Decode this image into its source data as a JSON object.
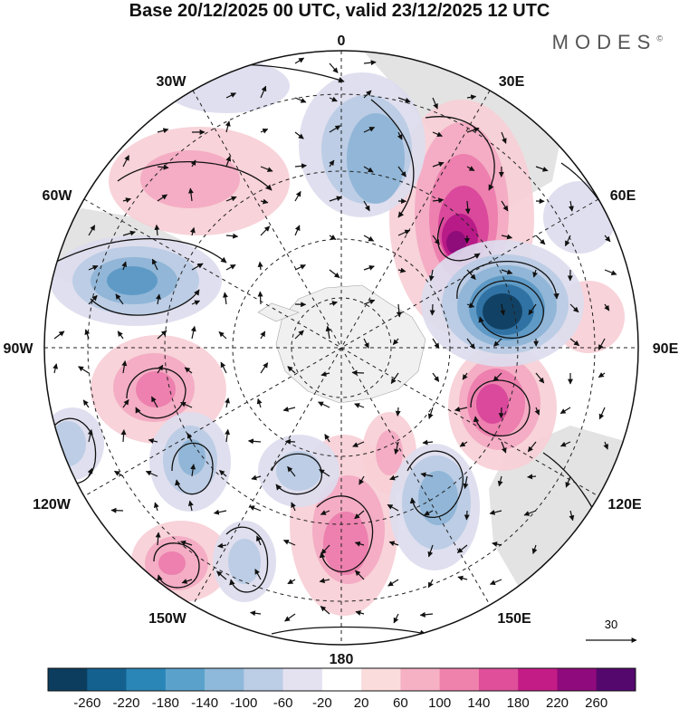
{
  "title": "Base 20/12/2025 00 UTC, valid 23/12/2025 12 UTC",
  "brand": {
    "name": "MODES",
    "mark": "©"
  },
  "longitude_labels": {
    "0": "0",
    "30E": "30E",
    "60E": "60E",
    "90E": "90E",
    "120E": "120E",
    "150E": "150E",
    "180": "180",
    "150W": "150W",
    "120W": "120W",
    "90W": "90W",
    "60W": "60W",
    "30W": "30W"
  },
  "reference_vector": {
    "label": "30"
  },
  "colorbar": {
    "ticks": [
      "-260",
      "-220",
      "-180",
      "-140",
      "-100",
      "-60",
      "-20",
      "20",
      "60",
      "100",
      "140",
      "180",
      "220",
      "260"
    ],
    "colors": [
      "#0c3d5e",
      "#14618f",
      "#2b86b8",
      "#5aa2cc",
      "#8eb9da",
      "#bccde6",
      "#e4e1f1",
      "#ffffff",
      "#fadcdc",
      "#f6b1c4",
      "#ef82ad",
      "#e04f9a",
      "#c41c86",
      "#8f0a7c",
      "#54086e"
    ]
  },
  "anomaly_colors": {
    "pink1": "#f7cfd6",
    "pink2": "#f3a9c2",
    "pink3": "#ec7cab",
    "pink4": "#d8449a",
    "pink5": "#b51785",
    "pink6": "#8b0b7a",
    "blue1": "#dcdcee",
    "blue2": "#b9cbe4",
    "blue3": "#8db4d6",
    "blue4": "#5b98c4",
    "blue5": "#2d6f9f",
    "blue6": "#0f3e5f",
    "land": "#d9d9d9",
    "antarctica": "#ececec"
  }
}
